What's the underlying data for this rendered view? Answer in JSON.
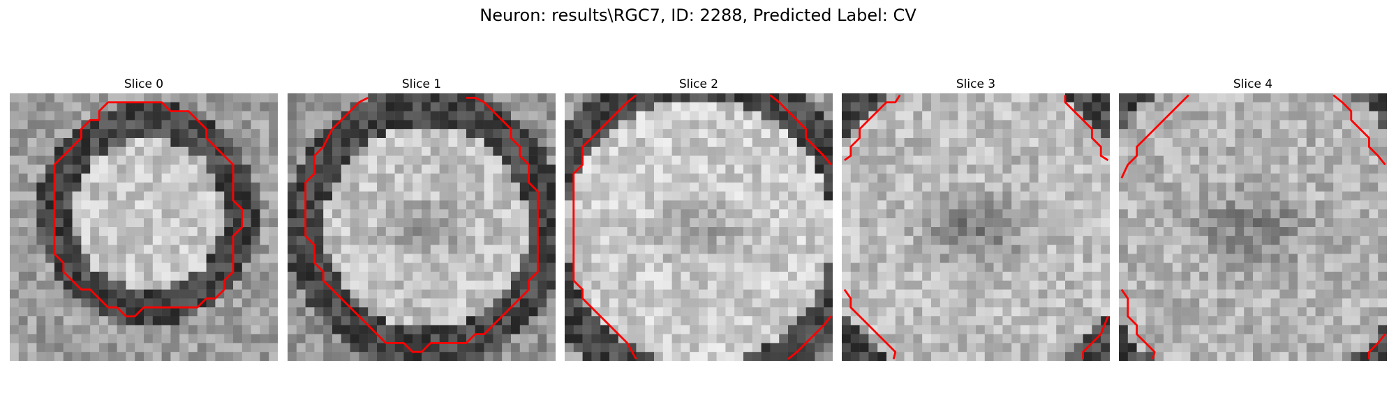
{
  "figure": {
    "title": "Neuron: results\\RGC7, ID: 2288, Predicted Label: CV"
  },
  "panels": [
    {
      "title": "Slice 0",
      "image": "grayscale-microscopy-slice",
      "contour_color": "#ff0000"
    },
    {
      "title": "Slice 1",
      "image": "grayscale-microscopy-slice",
      "contour_color": "#ff0000"
    },
    {
      "title": "Slice 2",
      "image": "grayscale-microscopy-slice",
      "contour_color": "#ff0000"
    },
    {
      "title": "Slice 3",
      "image": "grayscale-microscopy-slice",
      "contour_color": "#ff0000"
    },
    {
      "title": "Slice 4",
      "image": "grayscale-microscopy-slice",
      "contour_color": "#ff0000"
    }
  ]
}
